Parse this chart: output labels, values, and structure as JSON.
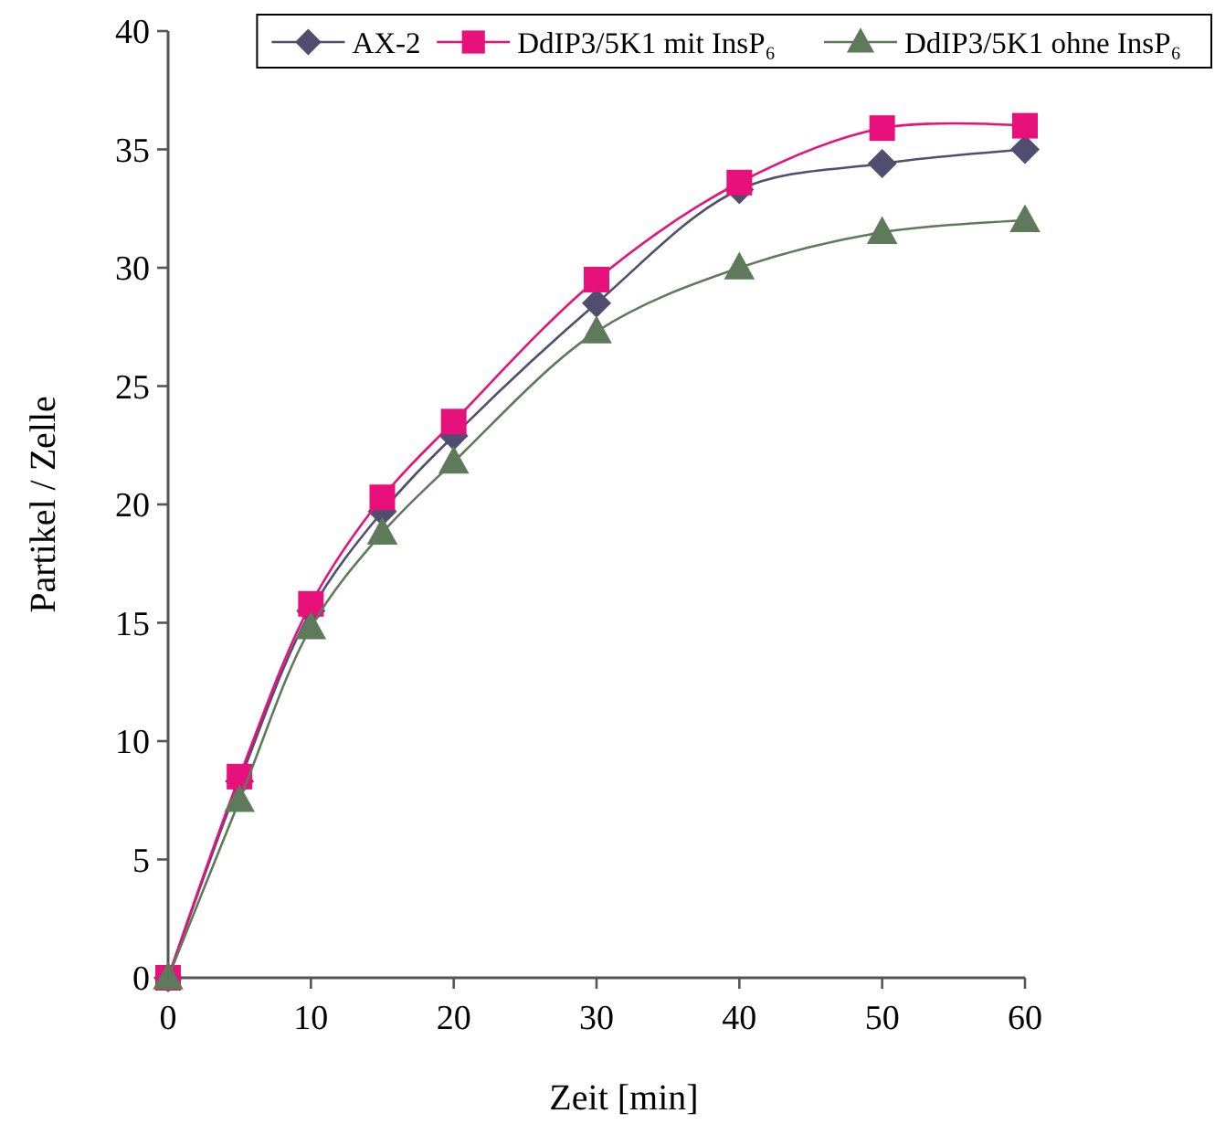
{
  "chart_data": {
    "type": "line",
    "xlabel": "Zeit [min]",
    "ylabel": "Partikel / Zelle",
    "x": [
      0,
      5,
      10,
      15,
      20,
      30,
      40,
      50,
      60
    ],
    "xlim": [
      0,
      60
    ],
    "xticks": [
      0,
      10,
      20,
      30,
      40,
      50,
      60
    ],
    "ylim": [
      0,
      40
    ],
    "yticks": [
      0,
      5,
      10,
      15,
      20,
      25,
      30,
      35,
      40
    ],
    "grid": false,
    "legend": "top right",
    "line_style": "solid",
    "series": [
      {
        "name": "AX-2",
        "color": "#4f4e6e",
        "marker": "diamond",
        "values": [
          0,
          8.3,
          15.5,
          19.7,
          22.9,
          28.5,
          33.3,
          34.4,
          35.0
        ]
      },
      {
        "name": "DdIP3/5K1 mit InsP₆",
        "color": "#e8107a",
        "marker": "square",
        "values": [
          0,
          8.5,
          15.8,
          20.3,
          23.5,
          29.5,
          33.6,
          35.9,
          36.0
        ]
      },
      {
        "name": "DdIP3/5K1 ohne InsP₆",
        "color": "#5e7a5a",
        "marker": "triangle",
        "values": [
          0,
          7.5,
          14.8,
          18.8,
          21.8,
          27.3,
          30.0,
          31.5,
          32.0
        ]
      }
    ]
  }
}
